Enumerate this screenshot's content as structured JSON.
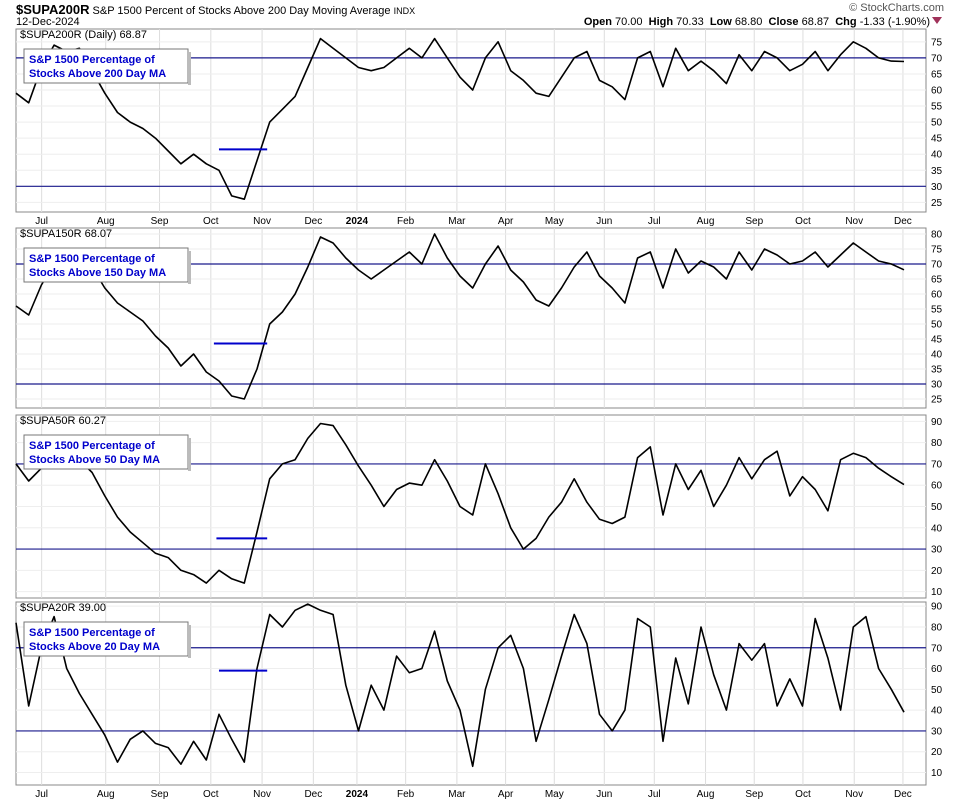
{
  "header": {
    "symbol": "$SUPA200R",
    "description": "S&P 1500 Percent of Stocks Above 200 Day Moving Average",
    "exchange": "INDX",
    "date": "12-Dec-2024",
    "copyright": "© StockCharts.com",
    "open_label": "Open",
    "open": "70.00",
    "high_label": "High",
    "high": "70.33",
    "low_label": "Low",
    "low": "68.80",
    "close_label": "Close",
    "close": "68.87",
    "chg_label": "Chg",
    "chg": "-1.33 (-1.90%)",
    "chg_icon": "down-triangle-icon"
  },
  "colors": {
    "line": "#000000",
    "hline": "#1a1a8c",
    "grid": "#dddddd",
    "legend_text": "#0000cc",
    "chg_arrow": "#a0325a"
  },
  "x_axis": {
    "tick_labels": [
      "Jul",
      "Aug",
      "Sep",
      "Oct",
      "Nov",
      "Dec",
      "2024",
      "Feb",
      "Mar",
      "Apr",
      "May",
      "Jun",
      "Jul",
      "Aug",
      "Sep",
      "Oct",
      "Nov",
      "Dec"
    ]
  },
  "chart_data": [
    {
      "type": "line",
      "title": "$SUPA200R (Daily) 68.87",
      "legend": "S&P 1500 Percentage of Stocks Above 200 Day MA",
      "ylim": [
        22,
        79
      ],
      "yticks": [
        25,
        30,
        35,
        40,
        45,
        50,
        55,
        60,
        65,
        70,
        75
      ],
      "hlines": [
        30,
        70
      ],
      "segment": {
        "x": [
          4.0,
          4.95
        ],
        "y": 41.5
      },
      "x": [
        0,
        0.25,
        0.5,
        0.75,
        1,
        1.25,
        1.5,
        1.75,
        2,
        2.25,
        2.5,
        2.75,
        3,
        3.25,
        3.5,
        3.75,
        4,
        4.25,
        4.5,
        4.75,
        5,
        5.25,
        5.5,
        5.75,
        6,
        6.25,
        6.5,
        6.75,
        7,
        7.25,
        7.5,
        7.75,
        8,
        8.25,
        8.5,
        8.75,
        9,
        9.25,
        9.5,
        9.75,
        10,
        10.25,
        10.5,
        10.75,
        11,
        11.25,
        11.5,
        11.75,
        12,
        12.25,
        12.5,
        12.75,
        13,
        13.25,
        13.5,
        13.75,
        14,
        14.25,
        14.5,
        14.75,
        15,
        15.25,
        15.5,
        15.75,
        16,
        16.25,
        16.5,
        16.75,
        17,
        17.25,
        17.5
      ],
      "y": [
        59,
        56,
        67,
        74,
        72,
        73,
        66,
        59,
        53,
        50,
        48,
        45,
        41,
        37,
        40,
        37,
        35,
        27,
        26,
        38,
        50,
        54,
        58,
        67,
        76,
        73,
        70,
        67,
        66,
        67,
        70,
        73,
        70,
        76,
        70,
        64,
        60,
        70,
        75,
        66,
        63,
        59,
        58,
        64,
        70,
        72,
        63,
        61,
        57,
        70,
        72,
        61,
        73,
        66,
        69,
        66,
        62,
        71,
        66,
        72,
        70,
        66,
        68,
        72,
        66,
        71,
        75,
        73,
        70,
        69,
        68.87
      ]
    },
    {
      "type": "line",
      "title": "$SUPA150R 68.07",
      "legend": "S&P 1500 Percentage of Stocks Above 150 Day MA",
      "ylim": [
        22,
        82
      ],
      "yticks": [
        25,
        30,
        35,
        40,
        45,
        50,
        55,
        60,
        65,
        70,
        75,
        80
      ],
      "hlines": [
        30,
        70
      ],
      "segment": {
        "x": [
          3.9,
          4.95
        ],
        "y": 43.5
      },
      "x": [
        0,
        0.25,
        0.5,
        0.75,
        1,
        1.25,
        1.5,
        1.75,
        2,
        2.25,
        2.5,
        2.75,
        3,
        3.25,
        3.5,
        3.75,
        4,
        4.25,
        4.5,
        4.75,
        5,
        5.25,
        5.5,
        5.75,
        6,
        6.25,
        6.5,
        6.75,
        7,
        7.25,
        7.5,
        7.75,
        8,
        8.25,
        8.5,
        8.75,
        9,
        9.25,
        9.5,
        9.75,
        10,
        10.25,
        10.5,
        10.75,
        11,
        11.25,
        11.5,
        11.75,
        12,
        12.25,
        12.5,
        12.75,
        13,
        13.25,
        13.5,
        13.75,
        14,
        14.25,
        14.5,
        14.75,
        15,
        15.25,
        15.5,
        15.75,
        16,
        16.25,
        16.5,
        16.75,
        17,
        17.25,
        17.5
      ],
      "y": [
        56,
        53,
        63,
        70,
        70,
        74,
        69,
        62,
        57,
        54,
        51,
        46,
        42,
        36,
        40,
        34,
        31,
        26,
        25,
        35,
        50,
        54,
        60,
        69,
        79,
        77,
        72,
        68,
        65,
        68,
        71,
        74,
        70,
        80,
        72,
        66,
        62,
        70,
        76,
        68,
        64,
        58,
        56,
        62,
        69,
        74,
        66,
        62,
        57,
        72,
        74,
        62,
        75,
        67,
        71,
        69,
        65,
        74,
        68,
        75,
        73,
        70,
        71,
        74,
        69,
        73,
        77,
        74,
        71,
        70,
        68.07
      ]
    },
    {
      "type": "line",
      "title": "$SUPA50R 60.27",
      "legend": "S&P 1500 Percentage of Stocks Above 50 Day MA",
      "ylim": [
        7,
        93
      ],
      "yticks": [
        10,
        20,
        30,
        40,
        50,
        60,
        70,
        80,
        90
      ],
      "hlines": [
        30,
        70
      ],
      "segment": {
        "x": [
          3.95,
          4.95
        ],
        "y": 35
      },
      "x": [
        0,
        0.25,
        0.5,
        0.75,
        1,
        1.25,
        1.5,
        1.75,
        2,
        2.25,
        2.5,
        2.75,
        3,
        3.25,
        3.5,
        3.75,
        4,
        4.25,
        4.5,
        4.75,
        5,
        5.25,
        5.5,
        5.75,
        6,
        6.25,
        6.5,
        6.75,
        7,
        7.25,
        7.5,
        7.75,
        8,
        8.25,
        8.5,
        8.75,
        9,
        9.25,
        9.5,
        9.75,
        10,
        10.25,
        10.5,
        10.75,
        11,
        11.25,
        11.5,
        11.75,
        12,
        12.25,
        12.5,
        12.75,
        13,
        13.25,
        13.5,
        13.75,
        14,
        14.25,
        14.5,
        14.75,
        15,
        15.25,
        15.5,
        15.75,
        16,
        16.25,
        16.5,
        16.75,
        17,
        17.25,
        17.5
      ],
      "y": [
        70,
        62,
        68,
        72,
        74,
        72,
        66,
        55,
        45,
        38,
        33,
        28,
        26,
        20,
        18,
        14,
        20,
        16,
        14,
        38,
        63,
        70,
        72,
        82,
        89,
        88,
        79,
        69,
        60,
        50,
        58,
        61,
        60,
        72,
        62,
        50,
        46,
        70,
        56,
        40,
        30,
        35,
        45,
        52,
        63,
        52,
        44,
        42,
        45,
        73,
        78,
        46,
        70,
        58,
        67,
        50,
        60,
        73,
        63,
        72,
        76,
        55,
        64,
        58,
        48,
        72,
        75,
        73,
        68,
        64,
        60.27
      ]
    },
    {
      "type": "line",
      "title": "$SUPA20R 39.00",
      "legend": "S&P 1500 Percentage of Stocks Above 20 Day MA",
      "ylim": [
        4,
        92
      ],
      "yticks": [
        10,
        20,
        30,
        40,
        50,
        60,
        70,
        80,
        90
      ],
      "hlines": [
        30,
        70
      ],
      "segment": {
        "x": [
          4.0,
          4.95
        ],
        "y": 59
      },
      "x": [
        0,
        0.25,
        0.5,
        0.75,
        1,
        1.25,
        1.5,
        1.75,
        2,
        2.25,
        2.5,
        2.75,
        3,
        3.25,
        3.5,
        3.75,
        4,
        4.25,
        4.5,
        4.75,
        5,
        5.25,
        5.5,
        5.75,
        6,
        6.25,
        6.5,
        6.75,
        7,
        7.25,
        7.5,
        7.75,
        8,
        8.25,
        8.5,
        8.75,
        9,
        9.25,
        9.5,
        9.75,
        10,
        10.25,
        10.5,
        10.75,
        11,
        11.25,
        11.5,
        11.75,
        12,
        12.25,
        12.5,
        12.75,
        13,
        13.25,
        13.5,
        13.75,
        14,
        14.25,
        14.5,
        14.75,
        15,
        15.25,
        15.5,
        15.75,
        16,
        16.25,
        16.5,
        16.75,
        17,
        17.25,
        17.5
      ],
      "y": [
        82,
        42,
        70,
        85,
        60,
        48,
        38,
        28,
        15,
        26,
        30,
        24,
        22,
        14,
        25,
        16,
        38,
        26,
        15,
        60,
        86,
        80,
        88,
        91,
        88,
        86,
        52,
        30,
        52,
        40,
        66,
        58,
        60,
        78,
        54,
        40,
        13,
        50,
        70,
        76,
        60,
        25,
        45,
        66,
        86,
        72,
        38,
        30,
        40,
        84,
        80,
        25,
        65,
        43,
        80,
        57,
        40,
        72,
        64,
        72,
        42,
        55,
        42,
        84,
        65,
        40,
        80,
        85,
        60,
        50,
        39
      ]
    }
  ]
}
